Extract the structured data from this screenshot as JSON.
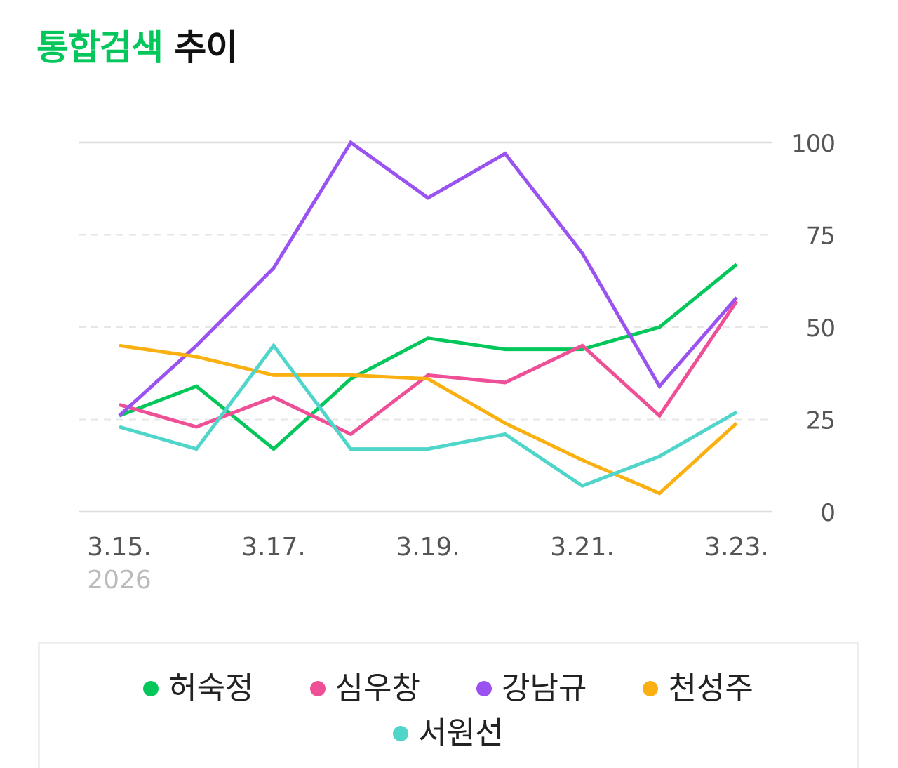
{
  "header": {
    "title_accent": "통합검색",
    "title_rest": " 추이",
    "accent_color": "#03c75a"
  },
  "chart_data": {
    "type": "line",
    "x": [
      "3.15.",
      "3.16.",
      "3.17.",
      "3.18.",
      "3.19.",
      "3.20.",
      "3.21.",
      "3.22.",
      "3.23."
    ],
    "x_tick_labels": [
      "3.15.",
      "3.17.",
      "3.19.",
      "3.21.",
      "3.23."
    ],
    "x_tick_indices": [
      0,
      2,
      4,
      6,
      8
    ],
    "year_label": "2026",
    "ylim": [
      0,
      100
    ],
    "y_ticks": [
      0,
      25,
      50,
      75,
      100
    ],
    "y_axis_side": "right",
    "grid": true,
    "legend_placement": "bottom",
    "series": [
      {
        "name": "허숙정",
        "color": "#03c75a",
        "values": [
          26,
          34,
          17,
          36,
          47,
          44,
          44,
          50,
          67
        ]
      },
      {
        "name": "심우창",
        "color": "#ee4f96",
        "values": [
          29,
          23,
          31,
          21,
          37,
          35,
          45,
          26,
          57
        ]
      },
      {
        "name": "강남규",
        "color": "#9a52f0",
        "values": [
          26,
          45,
          66,
          100,
          85,
          97,
          70,
          34,
          58
        ]
      },
      {
        "name": "천성주",
        "color": "#fbb012",
        "values": [
          45,
          42,
          37,
          37,
          36,
          24,
          14,
          5,
          24
        ]
      },
      {
        "name": "서원선",
        "color": "#4fd5c9",
        "values": [
          23,
          17,
          45,
          17,
          17,
          21,
          7,
          15,
          27
        ]
      }
    ]
  }
}
